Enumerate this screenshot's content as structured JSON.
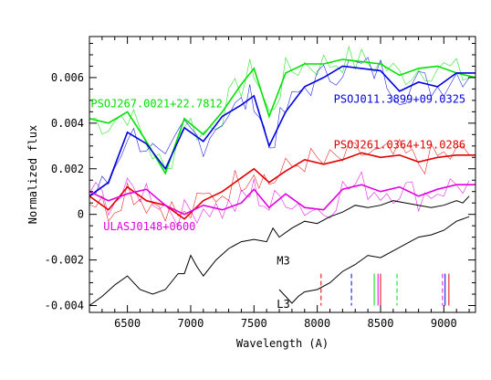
{
  "chart_data": {
    "type": "line",
    "xlabel": "Wavelength (A)",
    "ylabel": "Normalized flux",
    "xlim": [
      6200,
      9250
    ],
    "ylim": [
      -0.0043,
      0.0078
    ],
    "x_ticks": [
      6500,
      7000,
      7500,
      8000,
      8500,
      9000
    ],
    "y_ticks": [
      -0.004,
      -0.002,
      0,
      0.002,
      0.004,
      0.006
    ],
    "y_tick_labels": [
      "-0.004",
      "-0.002",
      "0",
      "0.002",
      "0.004",
      "0.006"
    ],
    "grid": false,
    "series": [
      {
        "name": "PSOJ267.0021+22.7812",
        "color": "#00e000",
        "x": [
          6200,
          6350,
          6500,
          6650,
          6800,
          6950,
          7100,
          7250,
          7400,
          7500,
          7620,
          7750,
          7900,
          8050,
          8200,
          8350,
          8500,
          8650,
          8800,
          8950,
          9100,
          9250
        ],
        "y": [
          0.0042,
          0.004,
          0.0045,
          0.0032,
          0.0018,
          0.0042,
          0.0035,
          0.0045,
          0.0057,
          0.0064,
          0.0043,
          0.0062,
          0.0066,
          0.0066,
          0.0068,
          0.0067,
          0.0066,
          0.0061,
          0.0064,
          0.0065,
          0.0062,
          0.006
        ]
      },
      {
        "name": "PSOJ011.3899+09.0325",
        "color": "#0000e0",
        "x": [
          6200,
          6350,
          6500,
          6650,
          6800,
          6950,
          7100,
          7250,
          7400,
          7500,
          7620,
          7750,
          7900,
          8050,
          8200,
          8350,
          8500,
          8650,
          8800,
          8950,
          9100,
          9250
        ],
        "y": [
          0.0008,
          0.0014,
          0.0036,
          0.0031,
          0.002,
          0.0038,
          0.0032,
          0.0043,
          0.0048,
          0.0052,
          0.003,
          0.0045,
          0.0056,
          0.006,
          0.0065,
          0.0064,
          0.0063,
          0.0054,
          0.0058,
          0.0056,
          0.0062,
          0.0062
        ]
      },
      {
        "name": "PSOJ261.0364+19.0286",
        "color": "#e00000",
        "x": [
          6200,
          6350,
          6500,
          6650,
          6800,
          6950,
          7100,
          7250,
          7400,
          7500,
          7620,
          7750,
          7900,
          8050,
          8200,
          8350,
          8500,
          8650,
          8800,
          8950,
          9100,
          9250
        ],
        "y": [
          0.0008,
          0.0002,
          0.0012,
          0.0006,
          0.0004,
          -0.0002,
          0.0006,
          0.001,
          0.0016,
          0.002,
          0.0014,
          0.0019,
          0.0024,
          0.0022,
          0.0024,
          0.0027,
          0.0025,
          0.0026,
          0.0023,
          0.0025,
          0.0026,
          0.0026
        ]
      },
      {
        "name": "ULASJ0148+0600",
        "color": "#e000e0",
        "x": [
          6200,
          6350,
          6500,
          6650,
          6800,
          6950,
          7100,
          7250,
          7400,
          7500,
          7620,
          7750,
          7900,
          8050,
          8200,
          8350,
          8500,
          8650,
          8800,
          8950,
          9100,
          9250
        ],
        "y": [
          0.001,
          0.0006,
          0.0009,
          0.0011,
          0.0004,
          0.0,
          0.0004,
          0.0002,
          0.0005,
          0.0011,
          0.0003,
          0.0009,
          0.0003,
          0.0002,
          0.0011,
          0.0013,
          0.001,
          0.0012,
          0.0008,
          0.0011,
          0.0013,
          0.0013
        ]
      },
      {
        "name": "M3",
        "color": "#000000",
        "x": [
          6200,
          6300,
          6400,
          6500,
          6600,
          6700,
          6800,
          6900,
          6950,
          7000,
          7050,
          7100,
          7200,
          7300,
          7400,
          7500,
          7600,
          7650,
          7700,
          7800,
          7900,
          8000,
          8100,
          8200,
          8300,
          8400,
          8500,
          8600,
          8700,
          8800,
          8900,
          9000,
          9100,
          9150,
          9200
        ],
        "y": [
          -0.004,
          -0.0036,
          -0.0031,
          -0.0027,
          -0.0033,
          -0.0035,
          -0.0033,
          -0.0026,
          -0.0026,
          -0.0018,
          -0.0023,
          -0.0027,
          -0.002,
          -0.0015,
          -0.0012,
          -0.0011,
          -0.0012,
          -0.0006,
          -0.001,
          -0.0006,
          -0.0003,
          -0.0004,
          -0.0001,
          0.0001,
          0.0004,
          0.0003,
          0.0004,
          0.0006,
          0.0005,
          0.0004,
          0.0003,
          0.0004,
          0.0006,
          0.0005,
          0.0008
        ]
      },
      {
        "name": "L3",
        "color": "#000000",
        "x": [
          7700,
          7750,
          7800,
          7850,
          7900,
          8000,
          8100,
          8200,
          8300,
          8400,
          8500,
          8600,
          8700,
          8800,
          8900,
          9000,
          9100,
          9200
        ],
        "y": [
          -0.0033,
          -0.0036,
          -0.0039,
          -0.0036,
          -0.0034,
          -0.0033,
          -0.003,
          -0.0025,
          -0.0022,
          -0.0018,
          -0.0019,
          -0.0016,
          -0.0013,
          -0.001,
          -0.0009,
          -0.0007,
          -0.0003,
          -0.0001
        ]
      }
    ],
    "line_markers": [
      {
        "x": 8030,
        "color": "#e00000",
        "dash": true
      },
      {
        "x": 8270,
        "color": "#0000e0",
        "dash": true
      },
      {
        "x": 8450,
        "color": "#00e000",
        "dash": false
      },
      {
        "x": 8480,
        "color": "#e000e0",
        "dash": false
      },
      {
        "x": 8500,
        "color": "#e00000",
        "dash": false
      },
      {
        "x": 8630,
        "color": "#00e000",
        "dash": true
      },
      {
        "x": 8990,
        "color": "#e000e0",
        "dash": true
      },
      {
        "x": 9010,
        "color": "#0000e0",
        "dash": false
      },
      {
        "x": 9040,
        "color": "#e00000",
        "dash": false
      }
    ],
    "labels": [
      {
        "text": "PSOJ267.0021+22.7812",
        "color": "#00e000",
        "x": 6210,
        "y": 0.0047
      },
      {
        "text": "PSOJ011.3899+09.0325",
        "color": "#0000e0",
        "x": 8130,
        "y": 0.0049
      },
      {
        "text": "PSOJ261.0364+19.0286",
        "color": "#e00000",
        "x": 8130,
        "y": 0.0029
      },
      {
        "text": "ULASJ0148+0600",
        "color": "#e000e0",
        "x": 6310,
        "y": -0.0007
      },
      {
        "text": "M3",
        "color": "#000000",
        "x": 7680,
        "y": -0.0022
      },
      {
        "text": "L3",
        "color": "#000000",
        "x": 7680,
        "y": -0.0041
      }
    ]
  }
}
